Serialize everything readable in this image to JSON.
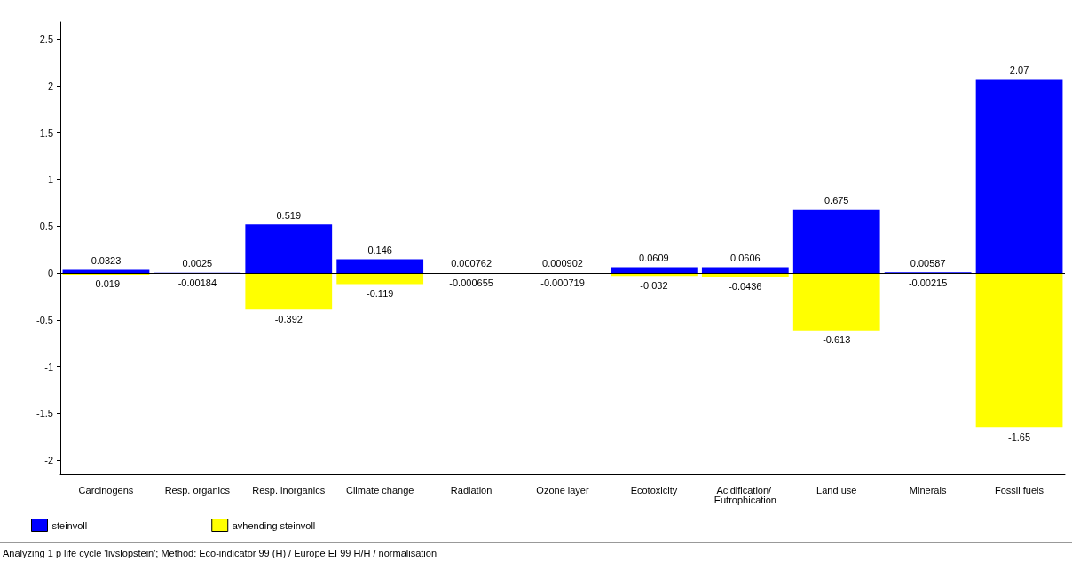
{
  "chart_data": {
    "type": "bar",
    "stacked": true,
    "categories": [
      "Carcinogens",
      "Resp. organics",
      "Resp. inorganics",
      "Climate change",
      "Radiation",
      "Ozone layer",
      "Ecotoxicity",
      "Acidification/ Eutrophication",
      "Land use",
      "Minerals",
      "Fossil fuels"
    ],
    "series": [
      {
        "name": "steinvoll",
        "color": "#0000ff",
        "values": [
          0.0323,
          0.0025,
          0.519,
          0.146,
          0.000762,
          0.000902,
          0.0609,
          0.0606,
          0.675,
          0.00587,
          2.07
        ]
      },
      {
        "name": "avhending steinvoll",
        "color": "#ffff00",
        "values": [
          -0.019,
          -0.00184,
          -0.392,
          -0.119,
          -0.000655,
          -0.000719,
          -0.032,
          -0.0436,
          -0.613,
          -0.00215,
          -1.65
        ]
      }
    ],
    "ylim": [
      -2.15,
      2.68
    ],
    "yticks": [
      -2,
      -1.5,
      -1,
      -0.5,
      0,
      0.5,
      1,
      1.5,
      2,
      2.5
    ],
    "ref_lines": [
      {
        "axis": "y",
        "value": 0,
        "color": "#000000"
      }
    ],
    "data_labels": true,
    "grid": false,
    "legend": "bottom left",
    "annotations": [
      "Analyzing 1 p life cycle 'livslopstein';  Method: Eco-indicator 99 (H) /  Europe EI 99 H/H / normalisation"
    ]
  }
}
